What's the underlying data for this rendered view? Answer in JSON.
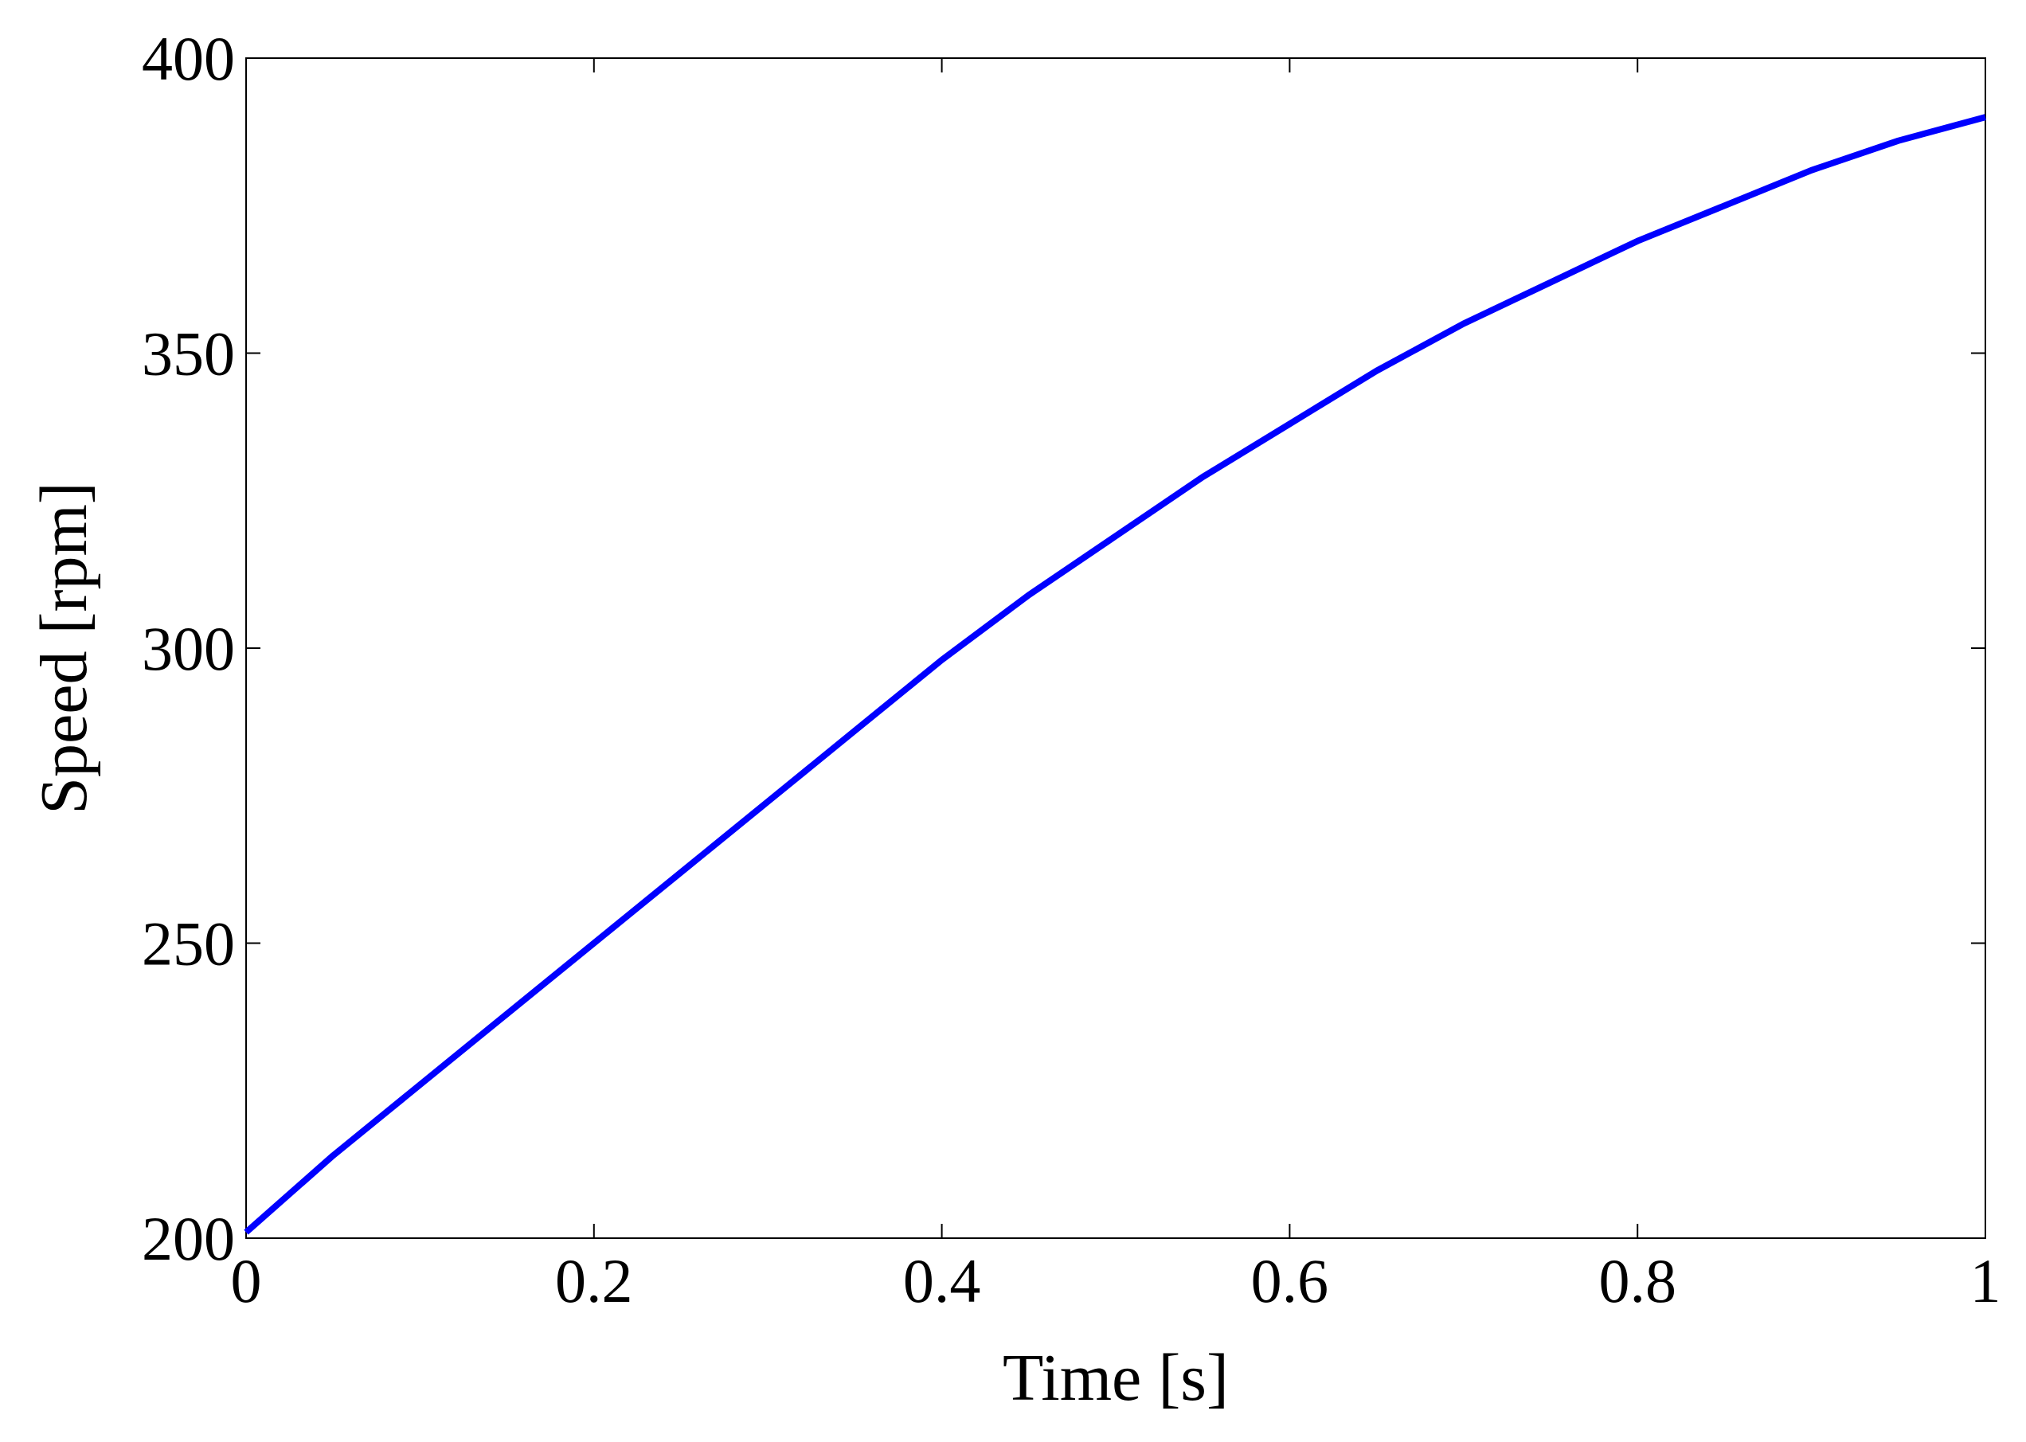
{
  "chart_data": {
    "type": "line",
    "title": "",
    "xlabel": "Time [s]",
    "ylabel": "Speed [rpm]",
    "xlim": [
      0,
      1
    ],
    "ylim": [
      200,
      400
    ],
    "xticks": [
      0,
      0.2,
      0.4,
      0.6,
      0.8,
      1
    ],
    "xtick_labels": [
      "0",
      "0.2",
      "0.4",
      "0.6",
      "0.8",
      "1"
    ],
    "yticks": [
      200,
      250,
      300,
      350,
      400
    ],
    "ytick_labels": [
      "200",
      "250",
      "300",
      "350",
      "400"
    ],
    "grid": false,
    "legend": "none",
    "series": [
      {
        "color": "#0000ff",
        "x": [
          0,
          0.05,
          0.1,
          0.15,
          0.2,
          0.25,
          0.3,
          0.35,
          0.4,
          0.45,
          0.5,
          0.55,
          0.6,
          0.65,
          0.7,
          0.75,
          0.8,
          0.85,
          0.9,
          0.95,
          1
        ],
        "y": [
          201,
          214,
          226,
          238,
          250,
          262,
          274,
          286,
          298,
          309,
          319,
          329,
          338,
          347,
          355,
          362,
          369,
          375,
          381,
          386,
          390
        ]
      }
    ]
  }
}
